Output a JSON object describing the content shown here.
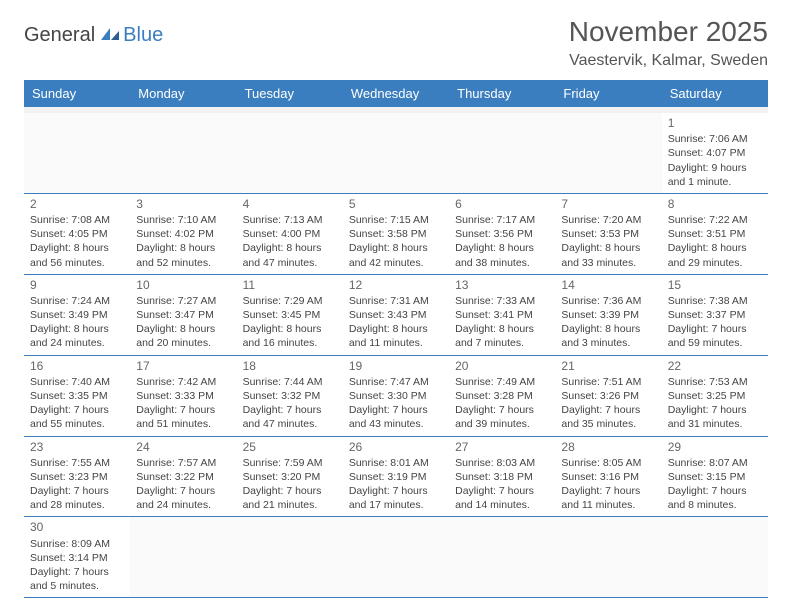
{
  "logo": {
    "general": "General",
    "blue": "Blue"
  },
  "title": "November 2025",
  "location": "Vaestervik, Kalmar, Sweden",
  "colors": {
    "headerBg": "#3a7ebf",
    "headerText": "#ffffff",
    "bodyText": "#444444",
    "grayText": "#666666"
  },
  "dayNames": [
    "Sunday",
    "Monday",
    "Tuesday",
    "Wednesday",
    "Thursday",
    "Friday",
    "Saturday"
  ],
  "weeks": [
    [
      null,
      null,
      null,
      null,
      null,
      null,
      {
        "n": "1",
        "sr": "Sunrise: 7:06 AM",
        "ss": "Sunset: 4:07 PM",
        "dl": "Daylight: 9 hours and 1 minute."
      }
    ],
    [
      {
        "n": "2",
        "sr": "Sunrise: 7:08 AM",
        "ss": "Sunset: 4:05 PM",
        "dl": "Daylight: 8 hours and 56 minutes."
      },
      {
        "n": "3",
        "sr": "Sunrise: 7:10 AM",
        "ss": "Sunset: 4:02 PM",
        "dl": "Daylight: 8 hours and 52 minutes."
      },
      {
        "n": "4",
        "sr": "Sunrise: 7:13 AM",
        "ss": "Sunset: 4:00 PM",
        "dl": "Daylight: 8 hours and 47 minutes."
      },
      {
        "n": "5",
        "sr": "Sunrise: 7:15 AM",
        "ss": "Sunset: 3:58 PM",
        "dl": "Daylight: 8 hours and 42 minutes."
      },
      {
        "n": "6",
        "sr": "Sunrise: 7:17 AM",
        "ss": "Sunset: 3:56 PM",
        "dl": "Daylight: 8 hours and 38 minutes."
      },
      {
        "n": "7",
        "sr": "Sunrise: 7:20 AM",
        "ss": "Sunset: 3:53 PM",
        "dl": "Daylight: 8 hours and 33 minutes."
      },
      {
        "n": "8",
        "sr": "Sunrise: 7:22 AM",
        "ss": "Sunset: 3:51 PM",
        "dl": "Daylight: 8 hours and 29 minutes."
      }
    ],
    [
      {
        "n": "9",
        "sr": "Sunrise: 7:24 AM",
        "ss": "Sunset: 3:49 PM",
        "dl": "Daylight: 8 hours and 24 minutes."
      },
      {
        "n": "10",
        "sr": "Sunrise: 7:27 AM",
        "ss": "Sunset: 3:47 PM",
        "dl": "Daylight: 8 hours and 20 minutes."
      },
      {
        "n": "11",
        "sr": "Sunrise: 7:29 AM",
        "ss": "Sunset: 3:45 PM",
        "dl": "Daylight: 8 hours and 16 minutes."
      },
      {
        "n": "12",
        "sr": "Sunrise: 7:31 AM",
        "ss": "Sunset: 3:43 PM",
        "dl": "Daylight: 8 hours and 11 minutes."
      },
      {
        "n": "13",
        "sr": "Sunrise: 7:33 AM",
        "ss": "Sunset: 3:41 PM",
        "dl": "Daylight: 8 hours and 7 minutes."
      },
      {
        "n": "14",
        "sr": "Sunrise: 7:36 AM",
        "ss": "Sunset: 3:39 PM",
        "dl": "Daylight: 8 hours and 3 minutes."
      },
      {
        "n": "15",
        "sr": "Sunrise: 7:38 AM",
        "ss": "Sunset: 3:37 PM",
        "dl": "Daylight: 7 hours and 59 minutes."
      }
    ],
    [
      {
        "n": "16",
        "sr": "Sunrise: 7:40 AM",
        "ss": "Sunset: 3:35 PM",
        "dl": "Daylight: 7 hours and 55 minutes."
      },
      {
        "n": "17",
        "sr": "Sunrise: 7:42 AM",
        "ss": "Sunset: 3:33 PM",
        "dl": "Daylight: 7 hours and 51 minutes."
      },
      {
        "n": "18",
        "sr": "Sunrise: 7:44 AM",
        "ss": "Sunset: 3:32 PM",
        "dl": "Daylight: 7 hours and 47 minutes."
      },
      {
        "n": "19",
        "sr": "Sunrise: 7:47 AM",
        "ss": "Sunset: 3:30 PM",
        "dl": "Daylight: 7 hours and 43 minutes."
      },
      {
        "n": "20",
        "sr": "Sunrise: 7:49 AM",
        "ss": "Sunset: 3:28 PM",
        "dl": "Daylight: 7 hours and 39 minutes."
      },
      {
        "n": "21",
        "sr": "Sunrise: 7:51 AM",
        "ss": "Sunset: 3:26 PM",
        "dl": "Daylight: 7 hours and 35 minutes."
      },
      {
        "n": "22",
        "sr": "Sunrise: 7:53 AM",
        "ss": "Sunset: 3:25 PM",
        "dl": "Daylight: 7 hours and 31 minutes."
      }
    ],
    [
      {
        "n": "23",
        "sr": "Sunrise: 7:55 AM",
        "ss": "Sunset: 3:23 PM",
        "dl": "Daylight: 7 hours and 28 minutes."
      },
      {
        "n": "24",
        "sr": "Sunrise: 7:57 AM",
        "ss": "Sunset: 3:22 PM",
        "dl": "Daylight: 7 hours and 24 minutes."
      },
      {
        "n": "25",
        "sr": "Sunrise: 7:59 AM",
        "ss": "Sunset: 3:20 PM",
        "dl": "Daylight: 7 hours and 21 minutes."
      },
      {
        "n": "26",
        "sr": "Sunrise: 8:01 AM",
        "ss": "Sunset: 3:19 PM",
        "dl": "Daylight: 7 hours and 17 minutes."
      },
      {
        "n": "27",
        "sr": "Sunrise: 8:03 AM",
        "ss": "Sunset: 3:18 PM",
        "dl": "Daylight: 7 hours and 14 minutes."
      },
      {
        "n": "28",
        "sr": "Sunrise: 8:05 AM",
        "ss": "Sunset: 3:16 PM",
        "dl": "Daylight: 7 hours and 11 minutes."
      },
      {
        "n": "29",
        "sr": "Sunrise: 8:07 AM",
        "ss": "Sunset: 3:15 PM",
        "dl": "Daylight: 7 hours and 8 minutes."
      }
    ],
    [
      {
        "n": "30",
        "sr": "Sunrise: 8:09 AM",
        "ss": "Sunset: 3:14 PM",
        "dl": "Daylight: 7 hours and 5 minutes."
      },
      null,
      null,
      null,
      null,
      null,
      null
    ]
  ]
}
